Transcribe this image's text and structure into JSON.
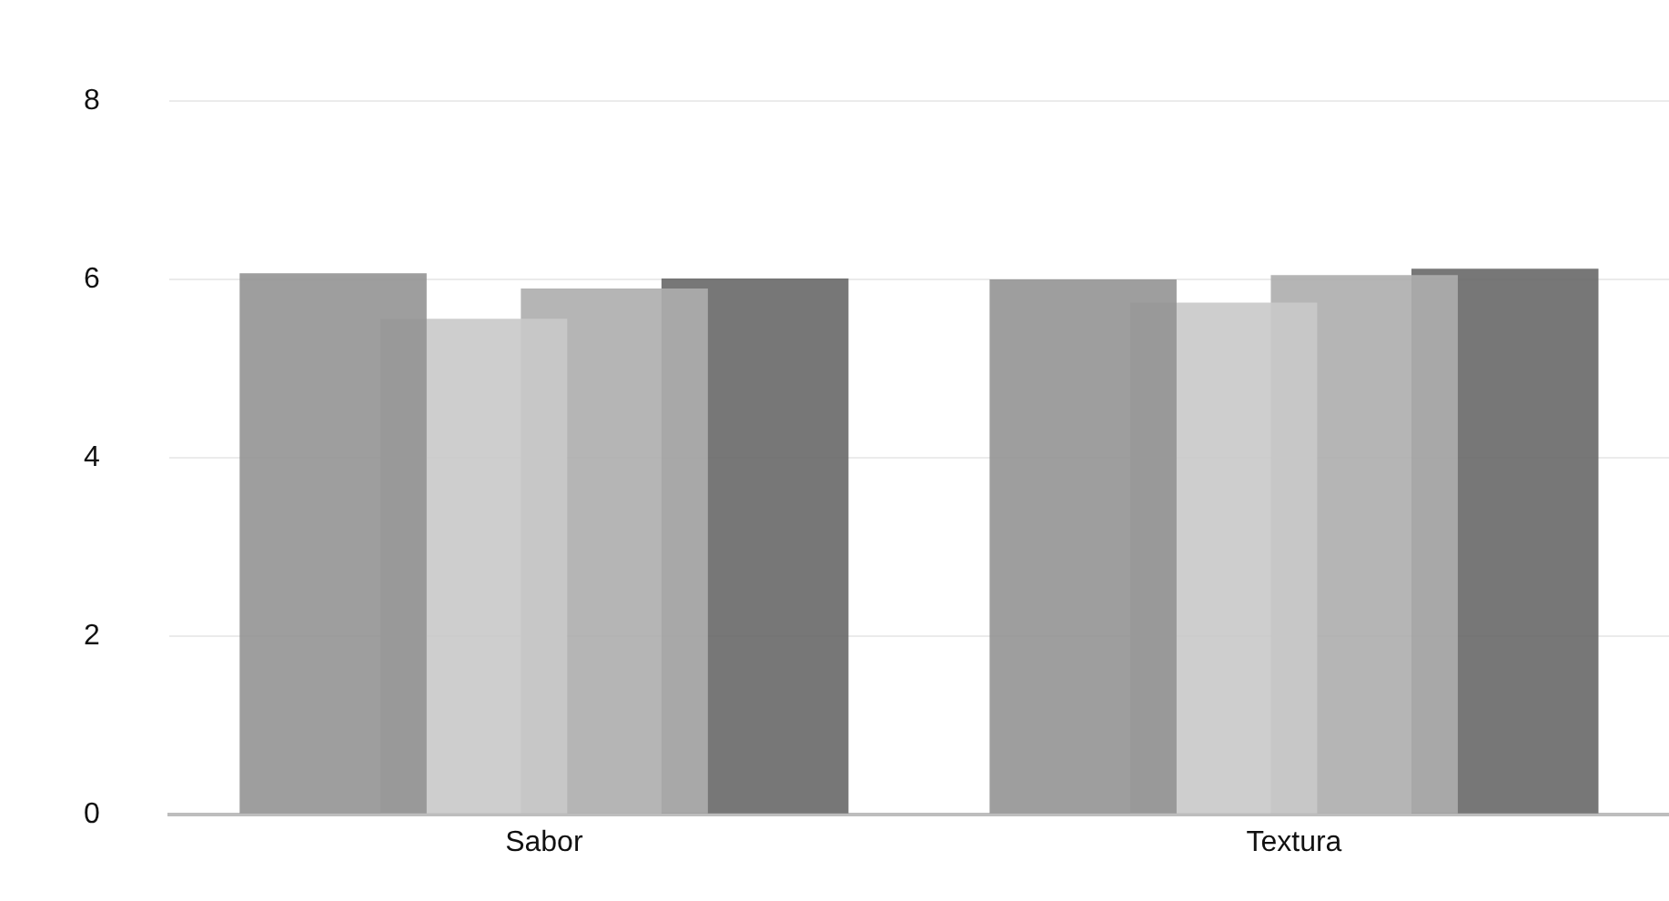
{
  "chart_data": {
    "type": "bar",
    "categories": [
      "Sabor",
      "Textura"
    ],
    "series": [
      {
        "color": "#939393",
        "values": [
          6.07,
          6.0
        ]
      },
      {
        "color": "#c9c9c9",
        "values": [
          5.56,
          5.74
        ]
      },
      {
        "color": "#adadad",
        "values": [
          5.9,
          6.05
        ]
      },
      {
        "color": "#686868",
        "values": [
          6.01,
          6.12
        ]
      }
    ],
    "ylim": [
      0,
      8
    ],
    "yticks": [
      0,
      2,
      4,
      6,
      8
    ],
    "grid": "y",
    "legend": false
  }
}
